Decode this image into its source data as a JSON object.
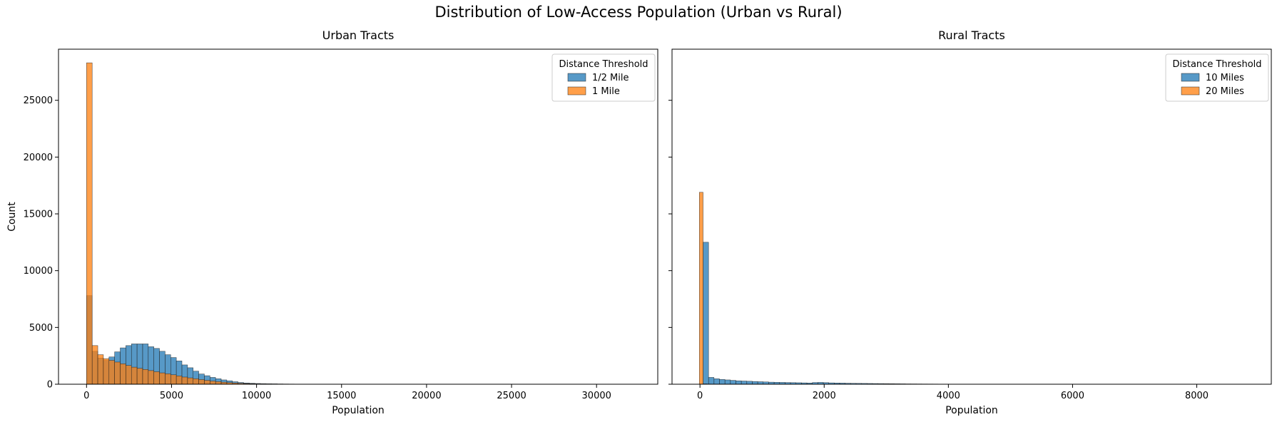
{
  "suptitle": "Distribution of Low-Access Population (Urban vs Rural)",
  "chart_data": [
    {
      "type": "bar",
      "title": "Urban Tracts",
      "xlabel": "Population",
      "ylabel": "Count",
      "xlim": [
        -1650,
        33600
      ],
      "ylim": [
        0,
        29500
      ],
      "xticks": [
        0,
        5000,
        10000,
        15000,
        20000,
        25000,
        30000
      ],
      "yticks": [
        0,
        5000,
        10000,
        15000,
        20000,
        25000
      ],
      "legend_title": "Distance Threshold",
      "legend_position": "top-right",
      "series": [
        {
          "name": "1/2 Mile",
          "color": "#1f77b4",
          "bin_start": 0,
          "bin_width": 330,
          "values": [
            7800,
            2900,
            2300,
            2100,
            2400,
            2850,
            3200,
            3400,
            3550,
            3550,
            3550,
            3300,
            3150,
            2900,
            2600,
            2350,
            2050,
            1700,
            1450,
            1150,
            900,
            750,
            600,
            480,
            380,
            300,
            220,
            150,
            110,
            85,
            65,
            50,
            40,
            35,
            28,
            22,
            18,
            15,
            12,
            10,
            8,
            6,
            5,
            4,
            4,
            3,
            3,
            2,
            2,
            2,
            1,
            1,
            1,
            1,
            1,
            1,
            1,
            1,
            1,
            1,
            1,
            1,
            1,
            1,
            1,
            1,
            1,
            1,
            1,
            1,
            1,
            1,
            1,
            1,
            1,
            1,
            1,
            1,
            1,
            1,
            1,
            1,
            1,
            1,
            1,
            1,
            1,
            1,
            1,
            1,
            1,
            1,
            1,
            1,
            1,
            1,
            1
          ]
        },
        {
          "name": "1 Mile",
          "color": "#ff7f0e",
          "bin_start": 0,
          "bin_width": 330,
          "values": [
            28300,
            3400,
            2600,
            2250,
            2100,
            1950,
            1800,
            1650,
            1500,
            1400,
            1300,
            1200,
            1100,
            1000,
            920,
            830,
            730,
            630,
            560,
            480,
            410,
            340,
            280,
            230,
            180,
            140,
            110,
            80,
            60,
            45,
            35,
            28,
            22,
            18,
            14,
            11,
            9,
            7,
            6,
            5,
            4,
            3,
            3,
            2,
            2,
            2,
            1,
            1,
            1,
            1,
            1,
            1,
            1,
            1,
            1,
            1,
            1,
            1,
            1,
            1,
            1,
            1,
            1,
            1,
            1,
            1,
            1,
            1,
            1,
            1,
            1,
            1,
            1,
            1,
            1,
            1,
            1,
            1,
            1,
            1,
            1,
            1,
            1,
            1,
            1,
            1,
            1,
            1,
            1,
            1,
            1,
            1,
            1,
            1,
            1,
            1,
            1
          ]
        }
      ]
    },
    {
      "type": "bar",
      "title": "Rural Tracts",
      "xlabel": "Population",
      "ylabel": "",
      "xlim": [
        -450,
        9200
      ],
      "ylim": [
        0,
        29500
      ],
      "xticks": [
        0,
        2000,
        4000,
        6000,
        8000
      ],
      "yticks": [
        0,
        5000,
        10000,
        15000,
        20000,
        25000
      ],
      "legend_title": "Distance Threshold",
      "legend_position": "top-right",
      "series": [
        {
          "name": "10 Miles",
          "color": "#1f77b4",
          "bin_start": 50,
          "bin_width": 88,
          "values": [
            12500,
            600,
            480,
            420,
            380,
            340,
            300,
            280,
            260,
            240,
            220,
            200,
            180,
            170,
            160,
            150,
            140,
            130,
            120,
            110,
            150,
            160,
            140,
            120,
            110,
            100,
            90,
            80,
            75,
            70,
            65,
            60,
            55,
            50,
            45,
            40,
            35,
            30,
            28,
            25,
            22,
            20,
            18,
            16,
            14,
            12,
            10,
            9,
            8,
            7,
            6,
            5,
            4,
            4,
            3,
            3,
            2,
            2,
            2,
            1,
            1,
            1,
            1,
            1,
            1,
            1,
            1,
            1,
            1,
            1,
            1,
            1,
            1,
            1,
            1,
            1,
            1,
            1,
            1,
            1,
            1,
            1,
            1,
            1,
            1,
            1,
            1,
            1,
            1,
            1,
            1,
            1,
            1,
            1,
            1,
            1,
            1,
            1,
            1,
            1
          ]
        },
        {
          "name": "20 Miles",
          "color": "#ff7f0e",
          "bin_start": -10,
          "bin_width": 60,
          "values": [
            16900,
            30,
            20,
            15,
            10,
            8,
            6,
            5,
            4,
            3,
            3,
            2,
            2,
            2,
            1,
            1,
            1,
            1,
            1,
            1,
            1,
            1,
            1,
            1,
            1,
            1,
            1,
            1,
            1,
            1,
            1,
            1,
            1,
            1,
            1,
            1,
            1,
            1,
            1,
            1
          ]
        }
      ]
    }
  ]
}
